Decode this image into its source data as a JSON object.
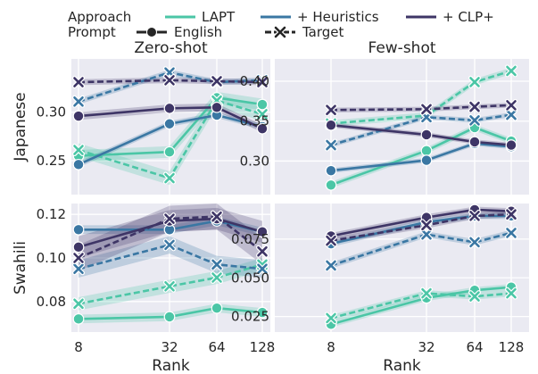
{
  "legend": {
    "approach_title": "Approach",
    "prompt_title": "Prompt",
    "approaches": [
      {
        "name": "LAPT",
        "color": "#4bc6a6"
      },
      {
        "name": "+ Heuristics",
        "color": "#3a77a3"
      },
      {
        "name": "+ CLP+",
        "color": "#3e3566"
      }
    ],
    "prompts": [
      {
        "name": "English",
        "style": "solid",
        "marker": "circle"
      },
      {
        "name": "Target",
        "style": "dashed",
        "marker": "x"
      }
    ]
  },
  "chart_data": [
    {
      "type": "line",
      "title": "Zero-shot",
      "row_label": "Japanese",
      "xlabel": "",
      "x": [
        8,
        32,
        64,
        128
      ],
      "x_scale": "log2",
      "ylim": [
        0.215,
        0.355
      ],
      "yticks": [
        0.25,
        0.3
      ],
      "grid": true,
      "series": [
        {
          "name": "LAPT",
          "prompt": "English",
          "values": [
            0.255,
            0.259,
            0.315,
            0.308
          ],
          "band": 0.006
        },
        {
          "name": "LAPT",
          "prompt": "Target",
          "values": [
            0.261,
            0.232,
            0.312,
            0.298
          ],
          "band": 0.007
        },
        {
          "name": "+ Heuristics",
          "prompt": "English",
          "values": [
            0.246,
            0.288,
            0.297,
            0.285
          ],
          "band": 0.003
        },
        {
          "name": "+ Heuristics",
          "prompt": "Target",
          "values": [
            0.311,
            0.341,
            0.331,
            0.333
          ],
          "band": 0.003
        },
        {
          "name": "+ CLP+",
          "prompt": "English",
          "values": [
            0.296,
            0.304,
            0.305,
            0.283
          ],
          "band": 0.004
        },
        {
          "name": "+ CLP+",
          "prompt": "Target",
          "values": [
            0.331,
            0.333,
            0.332,
            0.331
          ],
          "band": 0.003
        }
      ]
    },
    {
      "type": "line",
      "title": "Few-shot",
      "row_label": "",
      "xlabel": "",
      "x": [
        8,
        32,
        64,
        128
      ],
      "x_scale": "log2",
      "ylim": [
        0.258,
        0.428
      ],
      "yticks": [
        0.3,
        0.35,
        0.4
      ],
      "grid": true,
      "series": [
        {
          "name": "LAPT",
          "prompt": "English",
          "values": [
            0.27,
            0.313,
            0.342,
            0.325
          ],
          "band": 0.004
        },
        {
          "name": "LAPT",
          "prompt": "Target",
          "values": [
            0.347,
            0.357,
            0.399,
            0.413
          ],
          "band": 0.004
        },
        {
          "name": "+ Heuristics",
          "prompt": "English",
          "values": [
            0.288,
            0.301,
            0.322,
            0.318
          ],
          "band": 0.003
        },
        {
          "name": "+ Heuristics",
          "prompt": "Target",
          "values": [
            0.32,
            0.355,
            0.351,
            0.358
          ],
          "band": 0.003
        },
        {
          "name": "+ CLP+",
          "prompt": "English",
          "values": [
            0.345,
            0.333,
            0.324,
            0.32
          ],
          "band": 0.003
        },
        {
          "name": "+ CLP+",
          "prompt": "Target",
          "values": [
            0.364,
            0.365,
            0.368,
            0.37
          ],
          "band": 0.003
        }
      ]
    },
    {
      "type": "line",
      "title": "",
      "row_label": "Swahili",
      "xlabel": "Rank",
      "x": [
        8,
        32,
        64,
        128
      ],
      "x_scale": "log2",
      "xticks": [
        8,
        32,
        64,
        128
      ],
      "ylim": [
        0.066,
        0.125
      ],
      "yticks": [
        0.08,
        0.1,
        0.12
      ],
      "grid": true,
      "series": [
        {
          "name": "LAPT",
          "prompt": "English",
          "values": [
            0.072,
            0.073,
            0.077,
            0.075
          ],
          "band": 0.002
        },
        {
          "name": "LAPT",
          "prompt": "Target",
          "values": [
            0.079,
            0.087,
            0.091,
            0.097
          ],
          "band": 0.003
        },
        {
          "name": "+ Heuristics",
          "prompt": "English",
          "values": [
            0.113,
            0.113,
            0.117,
            0.112
          ],
          "band": 0.002
        },
        {
          "name": "+ Heuristics",
          "prompt": "Target",
          "values": [
            0.095,
            0.106,
            0.097,
            0.095
          ],
          "band": 0.004
        },
        {
          "name": "+ CLP+",
          "prompt": "English",
          "values": [
            0.105,
            0.117,
            0.118,
            0.112
          ],
          "band": 0.005
        },
        {
          "name": "+ CLP+",
          "prompt": "Target",
          "values": [
            0.1,
            0.118,
            0.119,
            0.103
          ],
          "band": 0.006
        }
      ]
    },
    {
      "type": "line",
      "title": "",
      "row_label": "",
      "xlabel": "Rank",
      "x": [
        8,
        32,
        64,
        128
      ],
      "x_scale": "log2",
      "xticks": [
        8,
        32,
        64,
        128
      ],
      "ylim": [
        0.015,
        0.098
      ],
      "yticks": [
        0.025,
        0.05,
        0.075
      ],
      "ytick_labels": [
        "0.025",
        "0.050",
        "0.075"
      ],
      "grid": true,
      "series": [
        {
          "name": "LAPT",
          "prompt": "English",
          "values": [
            0.02,
            0.037,
            0.042,
            0.044
          ],
          "band": 0.002
        },
        {
          "name": "LAPT",
          "prompt": "Target",
          "values": [
            0.024,
            0.04,
            0.038,
            0.04
          ],
          "band": 0.002
        },
        {
          "name": "+ Heuristics",
          "prompt": "English",
          "values": [
            0.072,
            0.086,
            0.09,
            0.09
          ],
          "band": 0.002
        },
        {
          "name": "+ Heuristics",
          "prompt": "Target",
          "values": [
            0.058,
            0.078,
            0.073,
            0.079
          ],
          "band": 0.002
        },
        {
          "name": "+ CLP+",
          "prompt": "English",
          "values": [
            0.077,
            0.089,
            0.094,
            0.093
          ],
          "band": 0.002
        },
        {
          "name": "+ CLP+",
          "prompt": "Target",
          "values": [
            0.074,
            0.084,
            0.09,
            0.091
          ],
          "band": 0.002
        }
      ]
    }
  ]
}
